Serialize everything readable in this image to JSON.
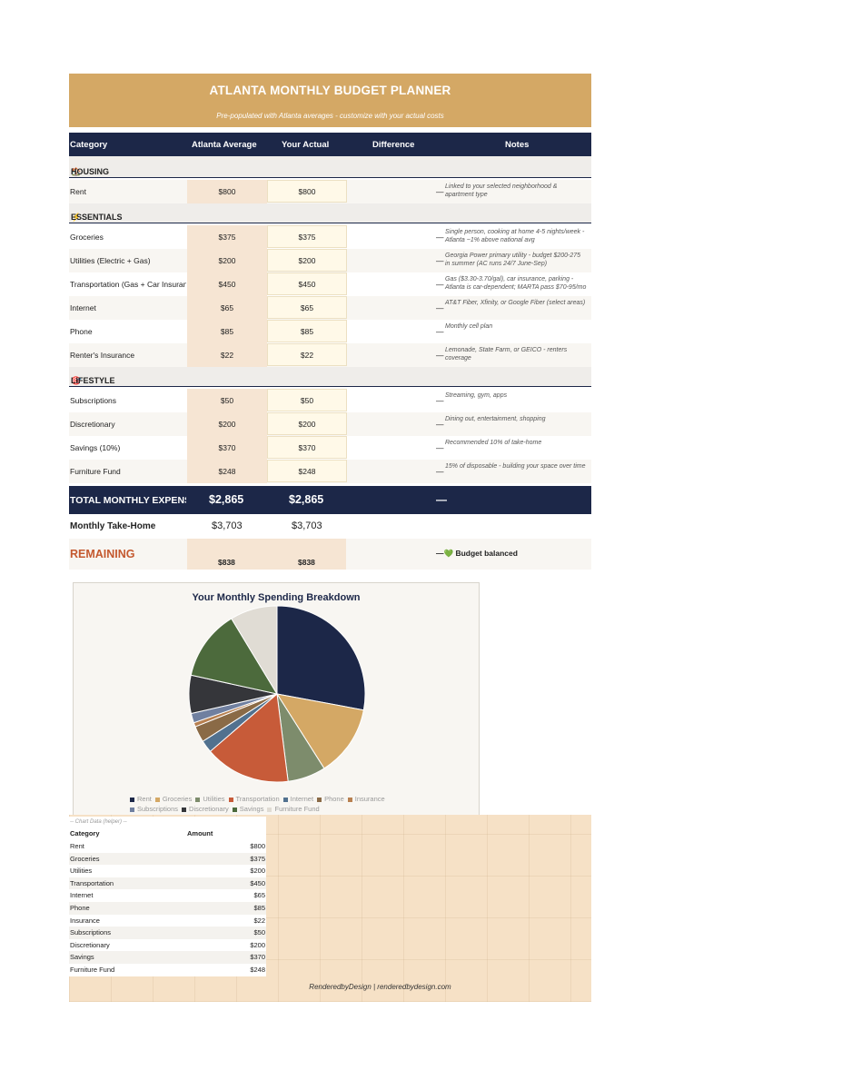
{
  "title": "ATLANTA MONTHLY BUDGET PLANNER",
  "subtitle": "Pre-populated with Atlanta averages - customize with your actual costs",
  "headers": {
    "category": "Category",
    "avg": "Atlanta Average",
    "actual": "Your Actual",
    "diff": "Difference",
    "notes": "Notes"
  },
  "sections": {
    "housing": "HOUSING",
    "essentials": "ESSENTIALS",
    "lifestyle": "LIFESTYLE"
  },
  "rows": [
    {
      "label": "Rent",
      "avg": "$800",
      "actual": "$800",
      "note": "Linked to your selected neighborhood & apartment type"
    },
    {
      "label": "Groceries",
      "avg": "$375",
      "actual": "$375",
      "note": "Single person, cooking at home 4-5 nights/week - Atlanta ~1% above national avg"
    },
    {
      "label": "Utilities (Electric + Gas)",
      "avg": "$200",
      "actual": "$200",
      "note": "Georgia Power primary utility - budget $200-275 in summer (AC runs 24/7 June-Sep)"
    },
    {
      "label": "Transportation (Gas + Car Insurance)",
      "avg": "$450",
      "actual": "$450",
      "note": "Gas ($3.30-3.70/gal), car insurance, parking - Atlanta is car-dependent; MARTA pass $70-95/mo"
    },
    {
      "label": "Internet",
      "avg": "$65",
      "actual": "$65",
      "note": "AT&T Fiber, Xfinity, or Google Fiber (select areas)"
    },
    {
      "label": "Phone",
      "avg": "$85",
      "actual": "$85",
      "note": "Monthly cell plan"
    },
    {
      "label": "Renter's Insurance",
      "avg": "$22",
      "actual": "$22",
      "note": "Lemonade, State Farm, or GEICO - renters coverage"
    },
    {
      "label": "Subscriptions",
      "avg": "$50",
      "actual": "$50",
      "note": "Streaming, gym, apps"
    },
    {
      "label": "Discretionary",
      "avg": "$200",
      "actual": "$200",
      "note": "Dining out, entertainment, shopping"
    },
    {
      "label": "Savings (10%)",
      "avg": "$370",
      "actual": "$370",
      "note": "Recommended 10% of take-home"
    },
    {
      "label": "Furniture Fund",
      "avg": "$248",
      "actual": "$248",
      "note": "15% of disposable - building your space over time"
    }
  ],
  "dash": "—",
  "total": {
    "label": "TOTAL MONTHLY EXPENSES",
    "avg": "$2,865",
    "actual": "$2,865",
    "diff": "—"
  },
  "takehome": {
    "label": "Monthly Take-Home",
    "avg": "$3,703",
    "actual": "$3,703"
  },
  "remaining": {
    "label": "REMAINING",
    "avg": "$838",
    "actual": "$838",
    "status": "Budget balanced",
    "heart": "💚"
  },
  "chart_data": {
    "type": "pie",
    "title": "Your Monthly Spending Breakdown",
    "categories": [
      "Rent",
      "Groceries",
      "Utilities",
      "Transportation",
      "Internet",
      "Phone",
      "Insurance",
      "Subscriptions",
      "Discretionary",
      "Savings",
      "Furniture Fund"
    ],
    "values": [
      800,
      375,
      200,
      450,
      65,
      85,
      22,
      50,
      200,
      370,
      248
    ],
    "colors": [
      "#1c2748",
      "#d4a865",
      "#7d8c6c",
      "#c75b39",
      "#51718f",
      "#8a6a46",
      "#b88050",
      "#7080a0",
      "#35363a",
      "#4c6a3c",
      "#e0dcd4"
    ],
    "legend_position": "bottom"
  },
  "helper": {
    "caption": "-- Chart Data (helper) --",
    "col1": "Category",
    "col2": "Amount",
    "rows": [
      [
        "Rent",
        "$800"
      ],
      [
        "Groceries",
        "$375"
      ],
      [
        "Utilities",
        "$200"
      ],
      [
        "Transportation",
        "$450"
      ],
      [
        "Internet",
        "$65"
      ],
      [
        "Phone",
        "$85"
      ],
      [
        "Insurance",
        "$22"
      ],
      [
        "Subscriptions",
        "$50"
      ],
      [
        "Discretionary",
        "$200"
      ],
      [
        "Savings",
        "$370"
      ],
      [
        "Furniture Fund",
        "$248"
      ]
    ]
  },
  "footer": "RenderedbyDesign  |  renderedbydesign.com"
}
